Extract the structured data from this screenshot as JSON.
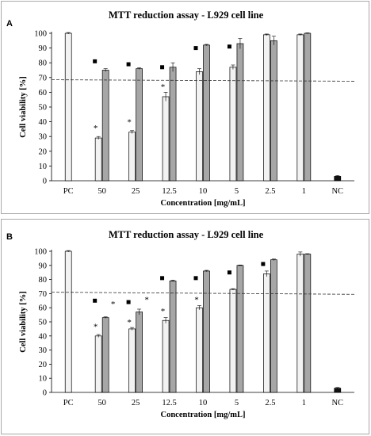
{
  "chart_data": [
    {
      "type": "bar",
      "panel": "A",
      "title": "MTT reduction assay - L929 cell line",
      "xlabel": "Concentration [mg/mL]",
      "ylabel": "Cell viability [%]",
      "categories": [
        "PC",
        "50",
        "25",
        "12.5",
        "10",
        "5",
        "2.5",
        "1",
        "NC"
      ],
      "ylim": [
        0,
        100
      ],
      "yticks": [
        0,
        10,
        20,
        30,
        40,
        50,
        60,
        70,
        80,
        90,
        100
      ],
      "series": [
        {
          "values": [
            100,
            29,
            33,
            57,
            74,
            77,
            99,
            99,
            null
          ],
          "errors": [
            0.5,
            1,
            1,
            3,
            2,
            1.5,
            0.5,
            0.5,
            null
          ],
          "color": "#f2f2f2"
        },
        {
          "values": [
            null,
            75,
            76,
            77,
            92,
            93,
            95,
            100,
            null
          ],
          "errors": [
            null,
            1,
            0.5,
            3,
            0.5,
            3.5,
            3,
            0.3,
            null
          ],
          "color": "#a6a6a6"
        },
        {
          "values": [
            null,
            null,
            null,
            null,
            null,
            null,
            null,
            null,
            3
          ],
          "errors": [
            null,
            null,
            null,
            null,
            null,
            null,
            null,
            null,
            0.5
          ],
          "color": "#111111"
        }
      ],
      "reference_line": {
        "y_start": 68.5,
        "y_end": 67.5,
        "style": "dashed"
      },
      "significance": [
        {
          "category": "50",
          "series": 0,
          "y": 36,
          "symbol": "*"
        },
        {
          "category": "25",
          "series": 0,
          "y": 40,
          "symbol": "*"
        },
        {
          "category": "12.5",
          "series": 0,
          "y": 64,
          "symbol": "*"
        },
        {
          "category": "50",
          "series": 1,
          "y": 81,
          "symbol": "■"
        },
        {
          "category": "25",
          "series": 1,
          "y": 79,
          "symbol": "■"
        },
        {
          "category": "12.5",
          "series": 1,
          "y": 77,
          "symbol": "■"
        },
        {
          "category": "10",
          "series": 1,
          "y": 90,
          "symbol": "■"
        },
        {
          "category": "5",
          "series": 1,
          "y": 91,
          "symbol": "■"
        }
      ],
      "grid": false,
      "legend": "none"
    },
    {
      "type": "bar",
      "panel": "B",
      "title": "MTT reduction assay - L929 cell line",
      "xlabel": "Concentration [mg/mL]",
      "ylabel": "Cell viability [%]",
      "categories": [
        "PC",
        "50",
        "25",
        "12.5",
        "10",
        "5",
        "2.5",
        "1",
        "NC"
      ],
      "ylim": [
        0,
        100
      ],
      "yticks": [
        0,
        10,
        20,
        30,
        40,
        50,
        60,
        70,
        80,
        90,
        100
      ],
      "series": [
        {
          "values": [
            100,
            40,
            45,
            51,
            60,
            73,
            84,
            98,
            null
          ],
          "errors": [
            0.5,
            1,
            1,
            2,
            1.5,
            0.5,
            2,
            1.5,
            null
          ],
          "color": "#f2f2f2"
        },
        {
          "values": [
            null,
            53,
            57,
            79,
            86,
            90,
            94,
            98,
            null
          ],
          "errors": [
            null,
            0.5,
            2,
            0.5,
            0.5,
            0.3,
            0.5,
            0.3,
            null
          ],
          "color": "#a6a6a6"
        },
        {
          "values": [
            null,
            null,
            null,
            null,
            null,
            null,
            null,
            null,
            3
          ],
          "errors": [
            null,
            null,
            null,
            null,
            null,
            null,
            null,
            null,
            0.5
          ],
          "color": "#111111"
        }
      ],
      "reference_line": {
        "y_start": 71,
        "y_end": 69.5,
        "style": "dashed"
      },
      "significance": [
        {
          "category": "50",
          "series": 0,
          "y": 47,
          "symbol": "*"
        },
        {
          "category": "25",
          "series": 0,
          "y": 50,
          "symbol": "*"
        },
        {
          "category": "12.5",
          "series": 0,
          "y": 58,
          "symbol": "*"
        },
        {
          "category": "10",
          "series": 0,
          "y": 66,
          "symbol": "*"
        },
        {
          "category": "50",
          "series": 1,
          "y": 63,
          "symbol": "*"
        },
        {
          "category": "25",
          "series": 1,
          "y": 66,
          "symbol": "*"
        },
        {
          "category": "50",
          "series": 1,
          "y": 65,
          "symbol": "■"
        },
        {
          "category": "25",
          "series": 1,
          "y": 64,
          "symbol": "■"
        },
        {
          "category": "12.5",
          "series": 1,
          "y": 81,
          "symbol": "■"
        },
        {
          "category": "10",
          "series": 1,
          "y": 81,
          "symbol": "■"
        },
        {
          "category": "5",
          "series": 1,
          "y": 85,
          "symbol": "■"
        },
        {
          "category": "2.5",
          "series": 1,
          "y": 91,
          "symbol": "■"
        }
      ],
      "grid": false,
      "legend": "none"
    }
  ]
}
